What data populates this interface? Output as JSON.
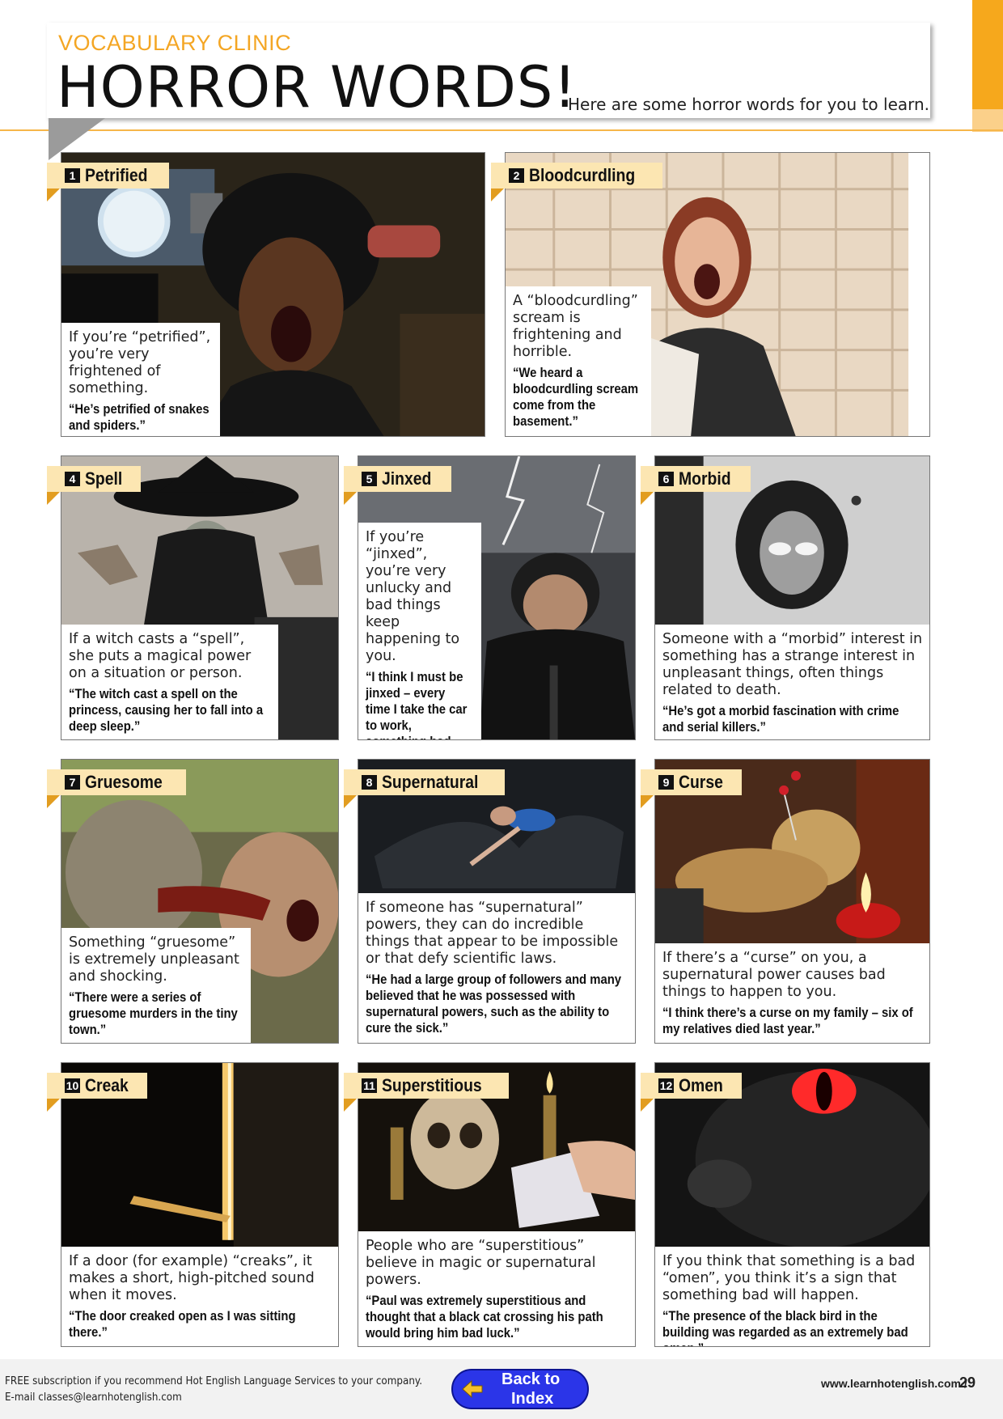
{
  "header": {
    "kicker": "VOCABULARY CLINIC",
    "title": "HORROR WORDS!",
    "intro": "Here are some horror words for you to learn."
  },
  "words": [
    {
      "num": "1",
      "word": "Petrified",
      "definition": "If you’re “petrified”, you’re very frightened of something.",
      "example": "“He’s petrified of snakes and spiders.”"
    },
    {
      "num": "2",
      "word": "Bloodcurdling",
      "definition": "A “bloodcurdling” scream is frightening and horrible.",
      "example": "“We heard a bloodcurdling scream come from the basement.”"
    },
    {
      "num": "4",
      "word": "Spell",
      "definition": "If a witch casts a “spell”, she puts a magical power on a situation or person.",
      "example": "“The witch cast a spell on the princess, causing her to fall into a deep sleep.”"
    },
    {
      "num": "5",
      "word": "Jinxed",
      "definition": "If you’re “jinxed”, you’re very unlucky and bad things keep happening to you.",
      "example": "“I think I must be jinxed – every time I take the car to work, something bad happens.”"
    },
    {
      "num": "6",
      "word": "Morbid",
      "definition": "Someone with a “morbid” interest in something has a strange interest in unpleasant things, often things related to death.",
      "example": "“He’s got a morbid fascination with crime and serial killers.”"
    },
    {
      "num": "7",
      "word": "Gruesome",
      "definition": "Something “gruesome” is extremely unpleasant and shocking.",
      "example": "“There were a series of gruesome murders in the tiny town.”"
    },
    {
      "num": "8",
      "word": "Supernatural",
      "definition": "If someone has “supernatural” powers, they can do incredible things that appear to be impossible or that defy scientific laws.",
      "example": "“He had a large group of followers and many believed that he was possessed with supernatural powers, such as the ability to cure the sick.”"
    },
    {
      "num": "9",
      "word": "Curse",
      "definition": "If there’s a “curse” on you, a supernatural power causes bad things to happen to you.",
      "example": "“I think there’s a curse on my family – six of my relatives died last year.”"
    },
    {
      "num": "10",
      "word": "Creak",
      "definition": "If a door (for example) “creaks”, it makes a short, high-pitched sound when it moves.",
      "example": "“The door creaked open as I was sitting there.”"
    },
    {
      "num": "11",
      "word": "Superstitious",
      "definition": "People who are “superstitious” believe in magic or supernatural powers.",
      "example": "“Paul was extremely superstitious and thought that a black cat crossing his path would bring him bad luck.”"
    },
    {
      "num": "12",
      "word": "Omen",
      "definition": "If you think that something is a bad “omen”, you think it’s a sign that something bad will happen.",
      "example": "“The presence of the black bird in the building was regarded as an extremely bad omen.”"
    }
  ],
  "footer": {
    "line1": "FREE subscription if you recommend Hot English Language Services to your company.",
    "line2": "E-mail classes@learnhotenglish.com",
    "back_line1": "Back to",
    "back_line2": "Index",
    "site": "www.learnhotenglish.com /",
    "page": "29"
  },
  "colors": {
    "accent": "#f6a81c",
    "label_bg": "#fce6b2",
    "button": "#2b35e8"
  }
}
